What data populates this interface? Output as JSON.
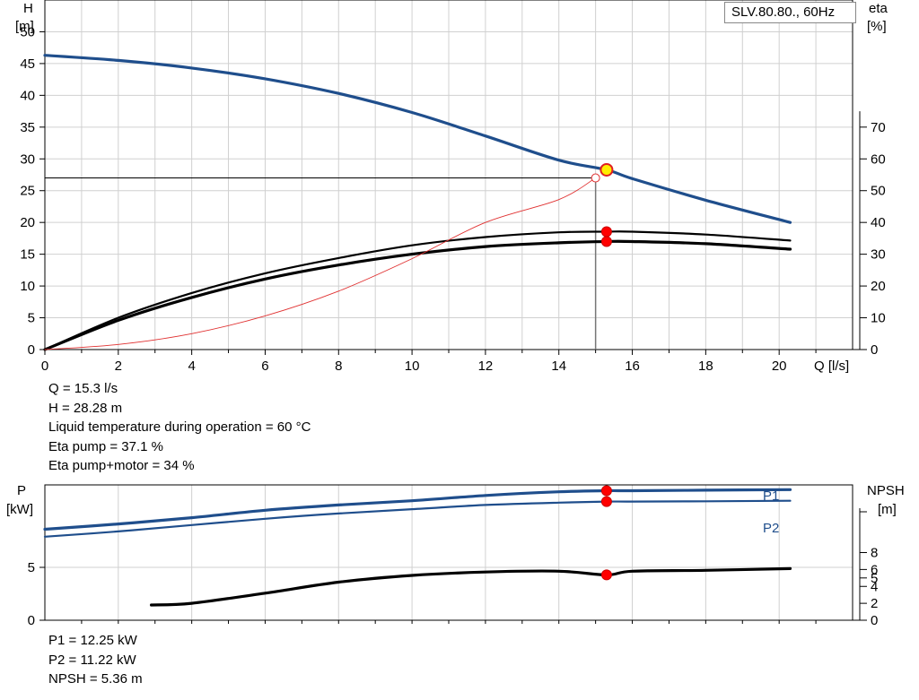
{
  "chart_data": [
    {
      "type": "line",
      "title": "SLV.80.80., 60Hz",
      "xlabel": "Q [l/s]",
      "ylabel_left": "H",
      "ylabel_left_unit": "[m]",
      "ylabel_right": "eta",
      "ylabel_right_unit": "[%]",
      "xlim": [
        0,
        22
      ],
      "ylim_left": [
        0,
        55
      ],
      "ylim_right": [
        0,
        110
      ],
      "grid": true,
      "x_ticks": [
        "0",
        "2",
        "4",
        "6",
        "8",
        "10",
        "12",
        "14",
        "16",
        "18",
        "20"
      ],
      "y_left_ticks": [
        "0",
        "5",
        "10",
        "15",
        "20",
        "25",
        "30",
        "35",
        "40",
        "45",
        "50"
      ],
      "y_right_ticks": [
        "0",
        "10",
        "20",
        "30",
        "40",
        "50",
        "60",
        "70"
      ],
      "series": [
        {
          "axis": "left",
          "color": "#1f4e8c",
          "x": [
            0,
            2,
            4,
            6,
            8,
            10,
            12,
            14,
            15.3,
            16,
            18,
            20.3
          ],
          "y": [
            46.3,
            45.5,
            44.3,
            42.6,
            40.3,
            37.3,
            33.6,
            29.8,
            28.28,
            26.9,
            23.5,
            20.0
          ]
        },
        {
          "axis": "right",
          "color": "#000000",
          "x": [
            0,
            2,
            4,
            6,
            8,
            10,
            12,
            14,
            15.3,
            16,
            18,
            20.3
          ],
          "y": [
            0,
            10.0,
            17.8,
            24.0,
            28.8,
            32.8,
            35.4,
            36.9,
            37.1,
            37.1,
            36.2,
            34.3
          ]
        },
        {
          "axis": "right",
          "color": "#000000",
          "x": [
            0,
            2,
            4,
            6,
            8,
            10,
            12,
            14,
            15.3,
            16,
            18,
            20.3
          ],
          "y": [
            0,
            9.2,
            16.4,
            22.2,
            26.6,
            30.0,
            32.4,
            33.6,
            34.0,
            34.0,
            33.3,
            31.6
          ]
        },
        {
          "axis": "left",
          "color": "#e03030",
          "x": [
            0,
            2,
            4,
            6,
            8,
            10,
            12,
            14,
            15
          ],
          "y": [
            0,
            0.8,
            2.5,
            5.3,
            9.2,
            14.3,
            20.0,
            23.6,
            27.0
          ]
        }
      ],
      "operating_point": {
        "x": 15.3,
        "y": 28.28
      },
      "required_point": {
        "x": 15.0,
        "y": 27.0
      },
      "eta_points": [
        37.1,
        34.0
      ]
    },
    {
      "type": "line",
      "xlim": [
        0,
        22
      ],
      "ylabel_left": "P",
      "ylabel_left_unit": "[kW]",
      "ylabel_right": "NPSH",
      "ylabel_right_unit": "[m]",
      "ylim_left": [
        0,
        12.8
      ],
      "ylim_right": [
        0,
        16
      ],
      "grid": true,
      "y_left_ticks": [
        "0",
        "5"
      ],
      "y_right_ticks": [
        "0",
        "2",
        "4",
        "5",
        "6",
        "8"
      ],
      "series": [
        {
          "name": "P1",
          "axis": "left",
          "color": "#1f4e8c",
          "x": [
            0,
            2,
            4,
            6,
            8,
            10,
            12,
            14,
            15.3,
            16,
            18,
            20.3
          ],
          "y": [
            8.6,
            9.1,
            9.7,
            10.4,
            10.9,
            11.3,
            11.8,
            12.15,
            12.25,
            12.25,
            12.3,
            12.35
          ]
        },
        {
          "name": "P2",
          "axis": "left",
          "color": "#1f4e8c",
          "x": [
            0,
            2,
            4,
            6,
            8,
            10,
            12,
            14,
            15.3,
            16,
            18,
            20.3
          ],
          "y": [
            7.9,
            8.4,
            9.0,
            9.6,
            10.1,
            10.5,
            10.9,
            11.12,
            11.22,
            11.22,
            11.25,
            11.3
          ]
        },
        {
          "axis": "right",
          "color": "#000000",
          "x": [
            2.9,
            4,
            6,
            8,
            10,
            12,
            14,
            15.3,
            16,
            18,
            20.3
          ],
          "y": [
            1.8,
            2.0,
            3.2,
            4.5,
            5.3,
            5.7,
            5.8,
            5.36,
            5.8,
            5.9,
            6.1
          ]
        }
      ],
      "points": [
        {
          "x": 15.3,
          "axis": "left",
          "y": 12.25
        },
        {
          "x": 15.3,
          "axis": "left",
          "y": 11.22
        },
        {
          "x": 15.3,
          "axis": "right",
          "y": 5.36
        }
      ]
    }
  ],
  "info_top": [
    "Q = 15.3 l/s",
    "H = 28.28 m",
    "Liquid temperature during operation = 60 °C",
    "Eta pump = 37.1 %",
    "Eta pump+motor = 34 %"
  ],
  "info_bottom": [
    "P1 = 12.25 kW",
    "P2 = 11.22 kW",
    "NPSH = 5.36 m"
  ]
}
